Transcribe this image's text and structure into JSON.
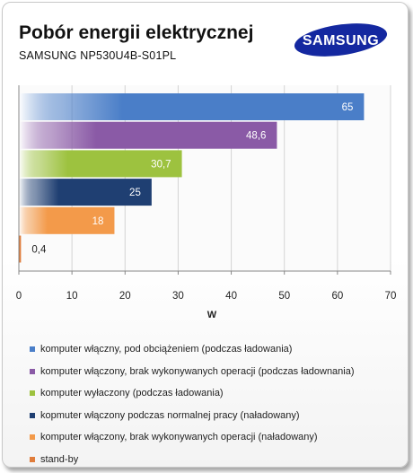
{
  "brand": {
    "logo_text": "SAMSUNG",
    "logo_color": "#1428a0"
  },
  "header": {
    "title": "Pobór energii elektrycznej",
    "subtitle": "SAMSUNG  NP530U4B-S01PL"
  },
  "chart_data": {
    "type": "bar",
    "orientation": "horizontal",
    "xlabel": "W",
    "ylabel": "",
    "xlim": [
      0,
      70
    ],
    "xticks": [
      0,
      10,
      20,
      30,
      40,
      50,
      60,
      70
    ],
    "grid": true,
    "legend_position": "bottom",
    "series": [
      {
        "name": "komputer włączny, pod obciążeniem (podczas ładowania)",
        "value": 65,
        "label": "65",
        "color": "#4a7ec8"
      },
      {
        "name": "komputer włączony, brak wykonywanych operacji (podczas ładownania)",
        "value": 48.6,
        "label": "48,6",
        "color": "#8a5aa6"
      },
      {
        "name": "komputer wyłaczony (podczas ładowania)",
        "value": 30.7,
        "label": "30,7",
        "color": "#9dc23f"
      },
      {
        "name": "kopmuter włączony podczas normalnej pracy (naładowany)",
        "value": 25,
        "label": "25",
        "color": "#1f3f72"
      },
      {
        "name": "komputer włączony, brak wykonywanych operacji (naładowany)",
        "value": 18,
        "label": "18",
        "color": "#f39a4a"
      },
      {
        "name": "stand-by",
        "value": 0.4,
        "label": "0,4",
        "color": "#e07c3a"
      }
    ]
  }
}
